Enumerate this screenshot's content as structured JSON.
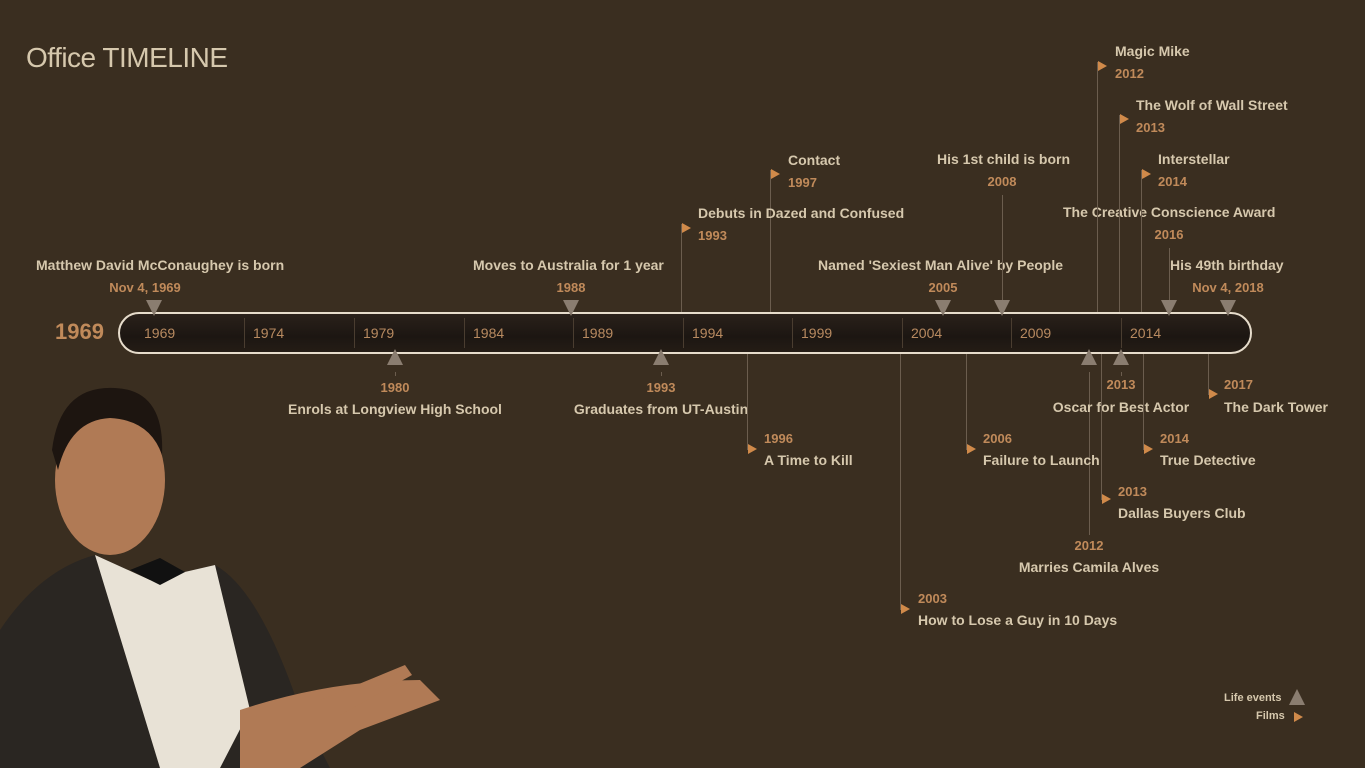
{
  "title": {
    "prefix": "Office",
    "main": "TIMELINE"
  },
  "start_year": "1969",
  "ticks": [
    "1969",
    "1974",
    "1979",
    "1984",
    "1989",
    "1994",
    "1999",
    "2004",
    "2009",
    "2014"
  ],
  "life_events": [
    {
      "title": "Matthew David McConaughey is born",
      "date": "Nov 4, 1969"
    },
    {
      "title": "Moves to Australia for 1 year",
      "date": "1988"
    },
    {
      "title": "Named 'Sexiest Man Alive' by People",
      "date": "2005"
    },
    {
      "title": "His 1st child is born",
      "date": "2008"
    },
    {
      "title": "The Creative Conscience Award",
      "date": "2016"
    },
    {
      "title": "His 49th birthday",
      "date": "Nov 4, 2018"
    },
    {
      "title": "Enrols at Longview High School",
      "date": "1980"
    },
    {
      "title": "Graduates from UT-Austin",
      "date": "1993"
    },
    {
      "title": "Marries Camila Alves",
      "date": "2012"
    },
    {
      "title": "Oscar for Best Actor",
      "date": "2013"
    }
  ],
  "films": [
    {
      "title": "Contact",
      "date": "1997"
    },
    {
      "title": "Debuts in Dazed and Confused",
      "date": "1993"
    },
    {
      "title": "Magic Mike",
      "date": "2012"
    },
    {
      "title": "The Wolf of Wall Street",
      "date": "2013"
    },
    {
      "title": "Interstellar",
      "date": "2014"
    },
    {
      "title": "A Time to Kill",
      "date": "1996"
    },
    {
      "title": "Failure to Launch",
      "date": "2006"
    },
    {
      "title": "How to Lose a Guy in 10 Days",
      "date": "2003"
    },
    {
      "title": "Dallas Buyers Club",
      "date": "2013"
    },
    {
      "title": "True Detective",
      "date": "2014"
    },
    {
      "title": "The Dark Tower",
      "date": "2017"
    }
  ],
  "legend": {
    "life_events": "Life events",
    "films": "Films"
  },
  "colors": {
    "background": "#3a2e20",
    "text": "#d6c8ad",
    "date": "#c08a5a",
    "flag": "#d08a4a",
    "marker": "#8a7d70"
  },
  "icons": {
    "life_event": "triangle-marker-icon",
    "film": "flag-icon"
  }
}
